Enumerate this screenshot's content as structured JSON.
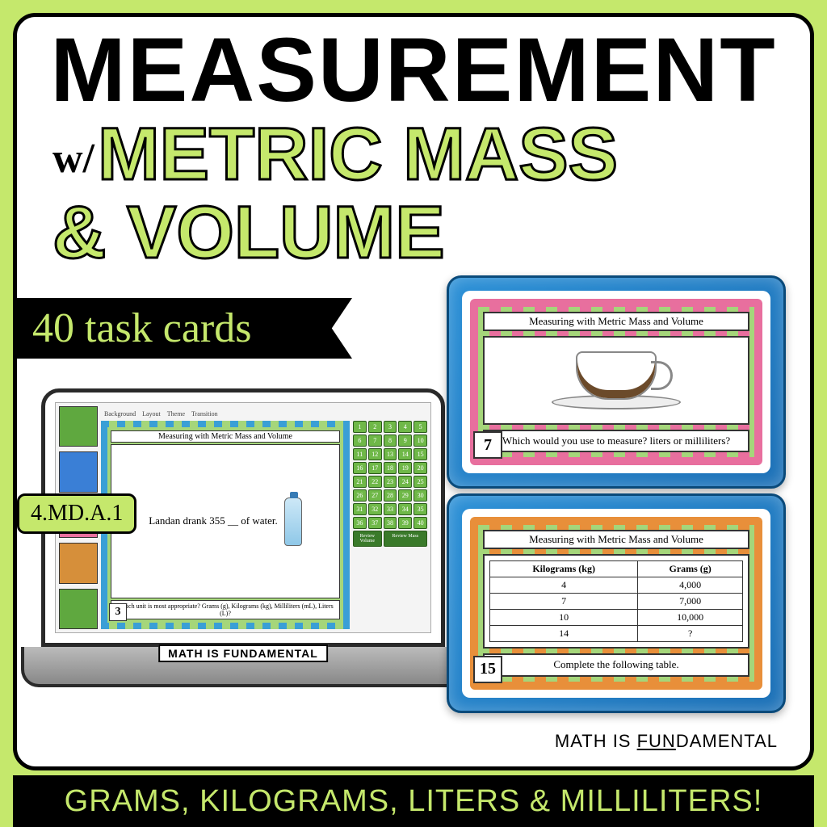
{
  "colors": {
    "lime": "#c5e86c",
    "black": "#000000",
    "white": "#ffffff",
    "blue_case": "#2a8fd6",
    "pink": "#e86f9e",
    "orange": "#e88f3a",
    "green_dot": "#a5d67a"
  },
  "title": {
    "line1": "MEASUREMENT",
    "prefix": "w/",
    "line2": "METRIC MASS",
    "line3": "& VOLUME"
  },
  "ribbon": "40 task cards",
  "standard_badge": "4.MD.A.1",
  "laptop": {
    "brand": "MATH IS FUNDAMENTAL",
    "toolbar": [
      "Background",
      "Layout",
      "Theme",
      "Transition"
    ],
    "slide": {
      "title": "Measuring with Metric Mass and Volume",
      "body": "Landan drank 355 __ of water.",
      "question": "Which unit is most appropriate?\nGrams (g), Kilograms (kg),\nMilliliters (mL), Liters (L)?",
      "number": "3"
    },
    "grid": {
      "count": 40,
      "review1": "Review Volume",
      "review2": "Review Mass"
    }
  },
  "card_top": {
    "title": "Measuring with Metric Mass and Volume",
    "question": "Which would you use to measure?\nliters or milliliters?",
    "number": "7"
  },
  "card_bot": {
    "title": "Measuring with Metric Mass and Volume",
    "number": "15",
    "question": "Complete the\nfollowing table.",
    "table": {
      "headers": [
        "Kilograms (kg)",
        "Grams (g)"
      ],
      "rows": [
        [
          "4",
          "4,000"
        ],
        [
          "7",
          "7,000"
        ],
        [
          "10",
          "10,000"
        ],
        [
          "14",
          "?"
        ]
      ]
    }
  },
  "brand": {
    "pre": "MATH IS ",
    "fun": "FUN",
    "post": "DAMENTAL"
  },
  "bottom_banner": "GRAMS, KILOGRAMS, LITERS & MILLILITERS!"
}
